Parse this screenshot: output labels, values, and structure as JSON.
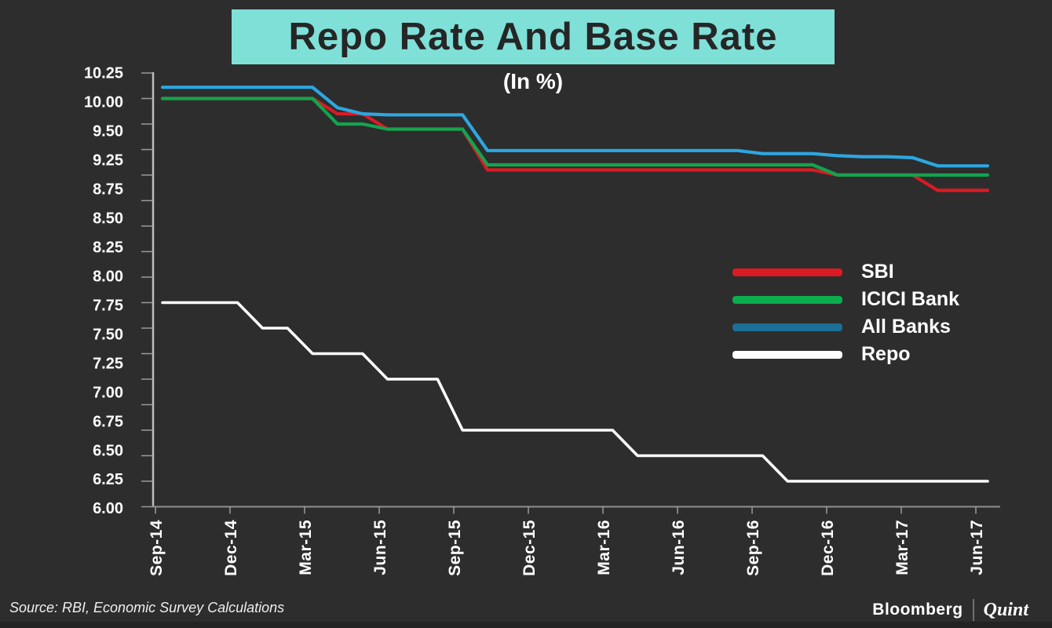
{
  "theme": {
    "background": "#2d2d2d",
    "banner_bg": "#7fe0d8",
    "banner_text": "#262626",
    "y_axis_color": "#bdbdbd",
    "x_axis_color": "#8f8f8f",
    "tick_color": "#9b9b9b",
    "label_color": "#ffffff"
  },
  "footer": {
    "source": "Source: RBI, Economic Survey Calculations",
    "brand_left": "Bloomberg",
    "brand_right": "Quint"
  },
  "chart_data": {
    "type": "line",
    "title": "Repo Rate And Base Rate",
    "subtitle": "(In %)",
    "unit": "%",
    "grid": false,
    "legend_position": "middle-right",
    "ylim": [
      6.0,
      10.25
    ],
    "y_minor_tick_step": 0.25,
    "y_tick_labels": [
      "10.25",
      "10.00",
      "9.50",
      "9.25",
      "8.75",
      "8.50",
      "8.25",
      "8.00",
      "7.75",
      "7.50",
      "7.25",
      "7.00",
      "6.75",
      "6.50",
      "6.25",
      "6.00"
    ],
    "x_tick_labels": [
      "Sep-14",
      "Dec-14",
      "Mar-15",
      "Jun-15",
      "Sep-15",
      "Dec-15",
      "Mar-16",
      "Jun-16",
      "Sep-16",
      "Dec-16",
      "Mar-17",
      "Jun-17"
    ],
    "x": [
      "Sep-14",
      "Oct-14",
      "Nov-14",
      "Dec-14",
      "Jan-15",
      "Feb-15",
      "Mar-15",
      "Apr-15",
      "May-15",
      "Jun-15",
      "Jul-15",
      "Aug-15",
      "Sep-15",
      "Oct-15",
      "Nov-15",
      "Dec-15",
      "Jan-16",
      "Feb-16",
      "Mar-16",
      "Apr-16",
      "May-16",
      "Jun-16",
      "Jul-16",
      "Aug-16",
      "Sep-16",
      "Oct-16",
      "Nov-16",
      "Dec-16",
      "Jan-17",
      "Feb-17",
      "Mar-17",
      "Apr-17",
      "May-17",
      "Jun-17"
    ],
    "series": [
      {
        "name": "SBI",
        "color": "#da1b23",
        "legend_color": "#da1b23",
        "values": [
          10.0,
          10.0,
          10.0,
          10.0,
          10.0,
          10.0,
          10.0,
          9.85,
          9.85,
          9.7,
          9.7,
          9.7,
          9.7,
          9.3,
          9.3,
          9.3,
          9.3,
          9.3,
          9.3,
          9.3,
          9.3,
          9.3,
          9.3,
          9.3,
          9.3,
          9.3,
          9.3,
          9.25,
          9.25,
          9.25,
          9.25,
          9.1,
          9.1,
          9.1
        ]
      },
      {
        "name": "ICICI Bank",
        "color": "#12a44e",
        "legend_color": "#0cad4f",
        "values": [
          10.0,
          10.0,
          10.0,
          10.0,
          10.0,
          10.0,
          10.0,
          9.75,
          9.75,
          9.7,
          9.7,
          9.7,
          9.7,
          9.35,
          9.35,
          9.35,
          9.35,
          9.35,
          9.35,
          9.35,
          9.35,
          9.35,
          9.35,
          9.35,
          9.35,
          9.35,
          9.35,
          9.25,
          9.25,
          9.25,
          9.25,
          9.25,
          9.25,
          9.25
        ]
      },
      {
        "name": "All Banks",
        "color": "#2ca7e0",
        "legend_color": "#1d6e96",
        "values": [
          10.11,
          10.11,
          10.11,
          10.11,
          10.11,
          10.11,
          10.11,
          9.91,
          9.85,
          9.84,
          9.84,
          9.84,
          9.84,
          9.49,
          9.49,
          9.49,
          9.49,
          9.49,
          9.49,
          9.49,
          9.49,
          9.49,
          9.49,
          9.49,
          9.46,
          9.46,
          9.46,
          9.44,
          9.43,
          9.43,
          9.42,
          9.34,
          9.34,
          9.34
        ]
      },
      {
        "name": "Repo",
        "color": "#ffffff",
        "legend_color": "#ffffff",
        "values": [
          8.0,
          8.0,
          8.0,
          8.0,
          7.75,
          7.75,
          7.5,
          7.5,
          7.5,
          7.25,
          7.25,
          7.25,
          6.75,
          6.75,
          6.75,
          6.75,
          6.75,
          6.75,
          6.75,
          6.5,
          6.5,
          6.5,
          6.5,
          6.5,
          6.5,
          6.25,
          6.25,
          6.25,
          6.25,
          6.25,
          6.25,
          6.25,
          6.25,
          6.25
        ]
      }
    ]
  }
}
